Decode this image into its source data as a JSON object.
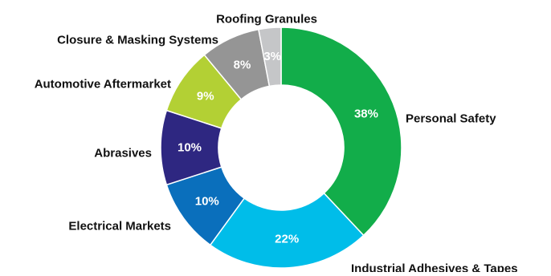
{
  "chart_data": {
    "type": "pie",
    "variant": "donut",
    "categories": [
      "Personal Safety",
      "Industrial Adhesives & Tapes",
      "Electrical Markets",
      "Abrasives",
      "Automotive Aftermarket",
      "Closure & Masking Systems",
      "Roofing Granules"
    ],
    "values": [
      38,
      22,
      10,
      10,
      9,
      8,
      3
    ],
    "value_labels": [
      "38%",
      "22%",
      "10%",
      "10%",
      "9%",
      "8%",
      "3%"
    ],
    "colors": [
      "#12ad4a",
      "#00bde9",
      "#0a6fbc",
      "#2e2781",
      "#b3d034",
      "#959595",
      "#c5c6c8"
    ],
    "title": "",
    "legend": "none",
    "labels": "outside-slices"
  }
}
